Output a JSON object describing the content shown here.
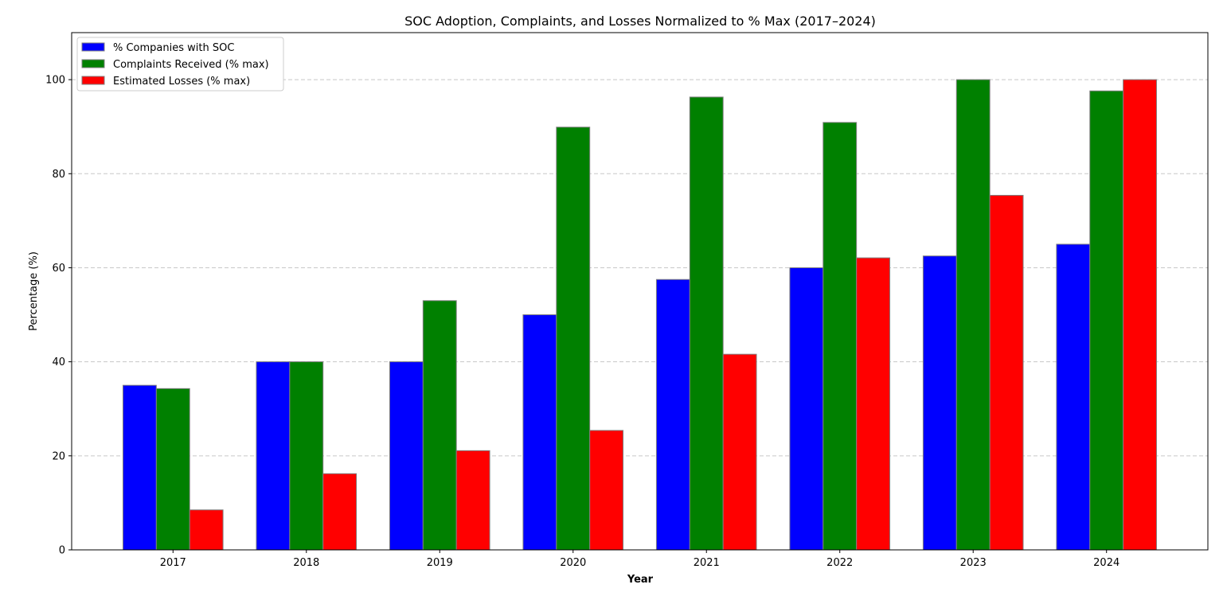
{
  "chart_data": {
    "type": "bar",
    "title": "SOC Adoption, Complaints, and Losses Normalized to % Max (2017–2024)",
    "xlabel": "Year",
    "ylabel": "Percentage (%)",
    "ylim": [
      0,
      110
    ],
    "yticks": [
      0,
      20,
      40,
      60,
      80,
      100
    ],
    "grid": "y-dashed",
    "legend_position": "top-left",
    "categories": [
      "2017",
      "2018",
      "2019",
      "2020",
      "2021",
      "2022",
      "2023",
      "2024"
    ],
    "series": [
      {
        "name": "% Companies with SOC",
        "color": "#0000ff",
        "values": [
          35,
          40,
          40,
          50,
          57.5,
          60,
          62.5,
          65
        ]
      },
      {
        "name": "Complaints Received (% max)",
        "color": "#008000",
        "values": [
          34.3,
          40,
          53,
          89.9,
          96.3,
          90.9,
          100,
          97.6
        ]
      },
      {
        "name": "Estimated Losses (% max)",
        "color": "#ff0000",
        "values": [
          8.5,
          16.2,
          21.1,
          25.4,
          41.6,
          62.1,
          75.4,
          100
        ]
      }
    ]
  }
}
